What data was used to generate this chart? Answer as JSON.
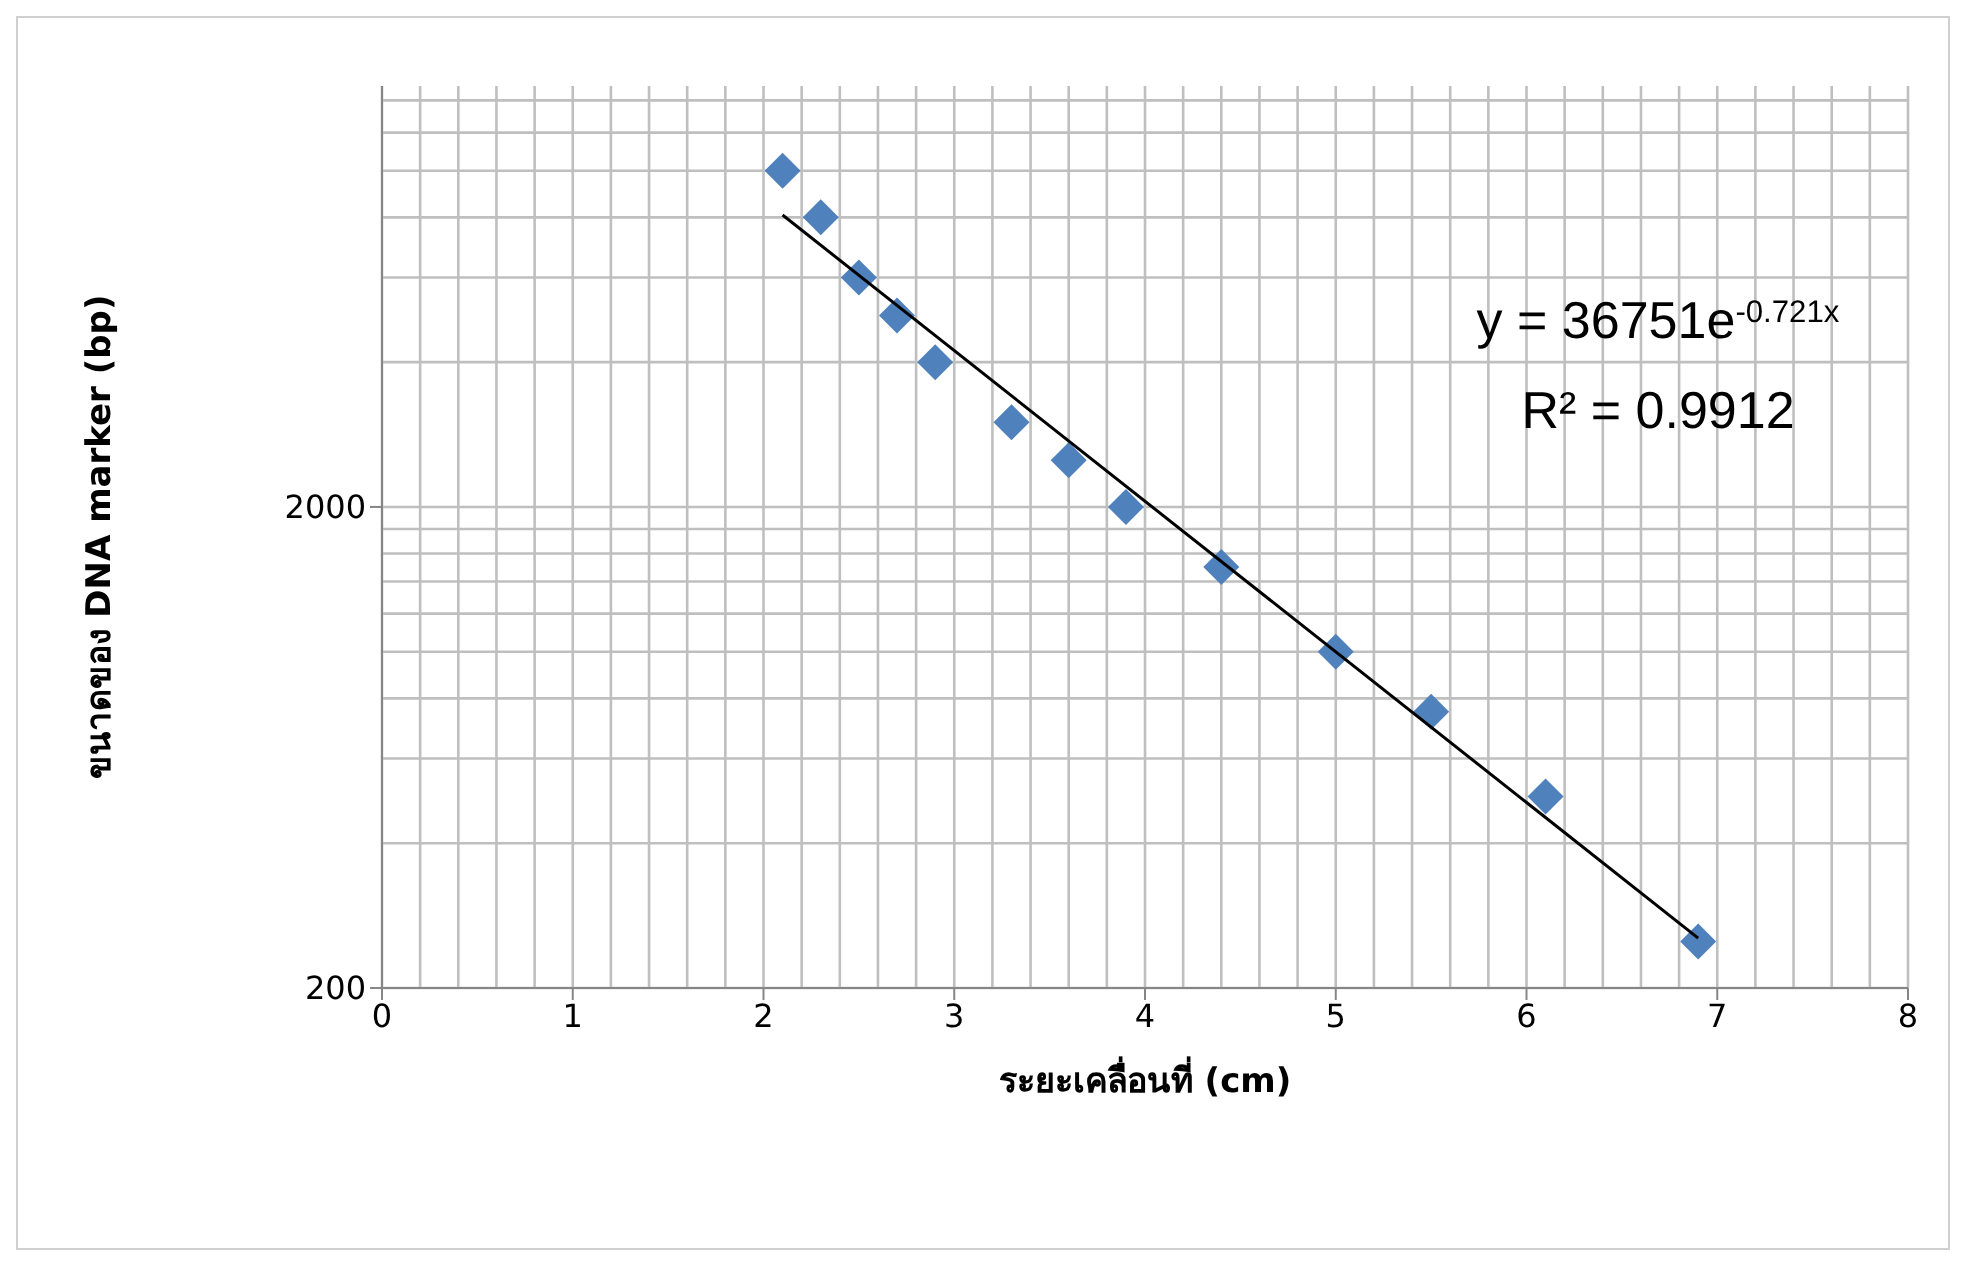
{
  "chart_data": {
    "type": "scatter",
    "xlabel": "ระยะเคลื่อนที่ (cm)",
    "ylabel": "ขนาดของ DNA marker (bp)",
    "xlim": [
      0,
      8
    ],
    "xticks": [
      0,
      1,
      2,
      3,
      4,
      5,
      6,
      7,
      8
    ],
    "ylim": [
      200,
      15000
    ],
    "yticks": [
      200,
      2000
    ],
    "log": "y",
    "grid": true,
    "legend": false,
    "series": [
      {
        "marker": "diamond",
        "color": "#4f81bd",
        "x": [
          2.1,
          2.3,
          2.5,
          2.7,
          2.9,
          3.3,
          3.6,
          3.9,
          4.4,
          5.0,
          5.5,
          6.1,
          6.9
        ],
        "values": [
          10000,
          8000,
          6000,
          5000,
          4000,
          3000,
          2500,
          2000,
          1500,
          1000,
          750,
          500,
          250
        ]
      },
      {
        "type": "line",
        "marker": "none",
        "line_style": "solid",
        "color": "#000000",
        "x": [
          2.1,
          6.9
        ],
        "values": [
          8088,
          254
        ]
      }
    ],
    "annotations": [
      "y = 36751e$^{-0.721x}$",
      "R² = 0.9912"
    ]
  }
}
